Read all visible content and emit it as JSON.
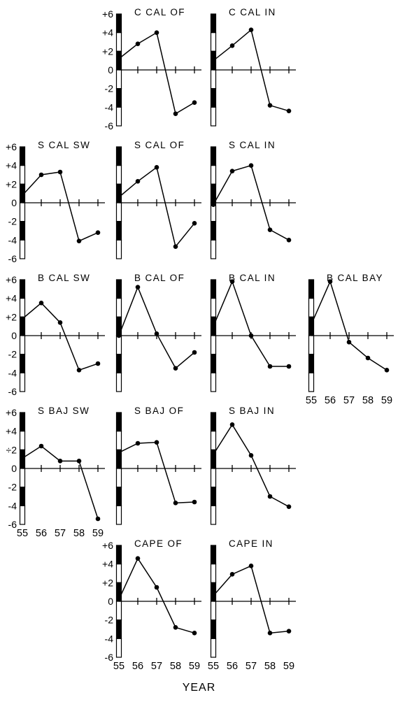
{
  "xlabel": "YEAR",
  "colors": {
    "ink": "#000000",
    "paper": "#ffffff"
  },
  "chart_data": [
    {
      "type": "line",
      "title": "C CAL OF",
      "x": [
        "55",
        "56",
        "57",
        "58",
        "59"
      ],
      "values": [
        1.2,
        2.8,
        4.0,
        -4.7,
        -3.5
      ],
      "ylim": [
        -6,
        6
      ],
      "yticks": [
        "+6",
        "+4",
        "+2",
        "0",
        "-2",
        "-4",
        "-6"
      ],
      "show_yticks": true,
      "show_xticks": false
    },
    {
      "type": "line",
      "title": "C CAL IN",
      "x": [
        "55",
        "56",
        "57",
        "58",
        "59"
      ],
      "values": [
        1.0,
        2.6,
        4.3,
        -3.8,
        -4.4
      ],
      "ylim": [
        -6,
        6
      ],
      "show_yticks": false,
      "show_xticks": false
    },
    {
      "type": "line",
      "title": "S CAL SW",
      "x": [
        "55",
        "56",
        "57",
        "58",
        "59"
      ],
      "values": [
        0.8,
        3.0,
        3.3,
        -4.1,
        -3.2
      ],
      "ylim": [
        -6,
        6
      ],
      "yticks": [
        "+6",
        "+4",
        "+2",
        "0",
        "-2",
        "-4",
        "-6"
      ],
      "show_yticks": true,
      "show_xticks": false
    },
    {
      "type": "line",
      "title": "S CAL OF",
      "x": [
        "55",
        "56",
        "57",
        "58",
        "59"
      ],
      "values": [
        0.6,
        2.3,
        3.8,
        -4.7,
        -2.2
      ],
      "ylim": [
        -6,
        6
      ],
      "show_yticks": false,
      "show_xticks": false
    },
    {
      "type": "line",
      "title": "S CAL IN",
      "x": [
        "55",
        "56",
        "57",
        "58",
        "59"
      ],
      "values": [
        -0.2,
        3.4,
        4.0,
        -2.9,
        -4.0
      ],
      "ylim": [
        -6,
        6
      ],
      "show_yticks": false,
      "show_xticks": false
    },
    {
      "type": "line",
      "title": "B CAL SW",
      "x": [
        "55",
        "56",
        "57",
        "58",
        "59"
      ],
      "values": [
        1.8,
        3.5,
        1.4,
        -3.7,
        -3.0
      ],
      "ylim": [
        -6,
        6
      ],
      "yticks": [
        "+6",
        "+4",
        "+2",
        "0",
        "-2",
        "-4",
        "-6"
      ],
      "show_yticks": true,
      "show_xticks": false
    },
    {
      "type": "line",
      "title": "B CAL OF",
      "x": [
        "55",
        "56",
        "57",
        "58",
        "59"
      ],
      "values": [
        0.0,
        5.2,
        0.2,
        -3.5,
        -1.8
      ],
      "ylim": [
        -6,
        6
      ],
      "show_yticks": false,
      "show_xticks": false
    },
    {
      "type": "line",
      "title": "B CAL IN",
      "x": [
        "55",
        "56",
        "57",
        "58",
        "59"
      ],
      "values": [
        1.0,
        5.8,
        0.0,
        -3.3,
        -3.3
      ],
      "ylim": [
        -6,
        6
      ],
      "show_yticks": false,
      "show_xticks": false
    },
    {
      "type": "line",
      "title": "B CAL BAY",
      "x": [
        "55",
        "56",
        "57",
        "58",
        "59"
      ],
      "values": [
        1.2,
        5.8,
        -0.7,
        -2.4,
        -3.7
      ],
      "ylim": [
        -6,
        6
      ],
      "show_yticks": false,
      "show_xticks": true
    },
    {
      "type": "line",
      "title": "S BAJ SW",
      "x": [
        "55",
        "56",
        "57",
        "58",
        "59"
      ],
      "values": [
        1.1,
        2.4,
        0.8,
        0.8,
        -5.4
      ],
      "ylim": [
        -6,
        6
      ],
      "yticks": [
        "+6",
        "+4",
        "÷2",
        "0",
        "-2",
        "-4",
        "-6"
      ],
      "show_yticks": true,
      "show_xticks": true
    },
    {
      "type": "line",
      "title": "S BAJ OF",
      "x": [
        "55",
        "56",
        "57",
        "58",
        "59"
      ],
      "values": [
        1.7,
        2.7,
        2.8,
        -3.7,
        -3.6
      ],
      "ylim": [
        -6,
        6
      ],
      "show_yticks": false,
      "show_xticks": false
    },
    {
      "type": "line",
      "title": "S BAJ IN",
      "x": [
        "55",
        "56",
        "57",
        "58",
        "59"
      ],
      "values": [
        1.5,
        4.7,
        1.4,
        -3.0,
        -4.1
      ],
      "ylim": [
        -6,
        6
      ],
      "show_yticks": false,
      "show_xticks": false
    },
    {
      "type": "line",
      "title": "CAPE OF",
      "x": [
        "55",
        "56",
        "57",
        "58",
        "59"
      ],
      "values": [
        0.2,
        4.6,
        1.5,
        -2.8,
        -3.4
      ],
      "ylim": [
        -6,
        6
      ],
      "yticks": [
        "+6",
        "+4",
        "+2",
        "0",
        "-2",
        "-4",
        "-6"
      ],
      "show_yticks": true,
      "show_xticks": true
    },
    {
      "type": "line",
      "title": "CAPE IN",
      "x": [
        "55",
        "56",
        "57",
        "58",
        "59"
      ],
      "values": [
        0.6,
        2.9,
        3.8,
        -3.4,
        -3.2
      ],
      "ylim": [
        -6,
        6
      ],
      "show_yticks": false,
      "show_xticks": true
    }
  ]
}
